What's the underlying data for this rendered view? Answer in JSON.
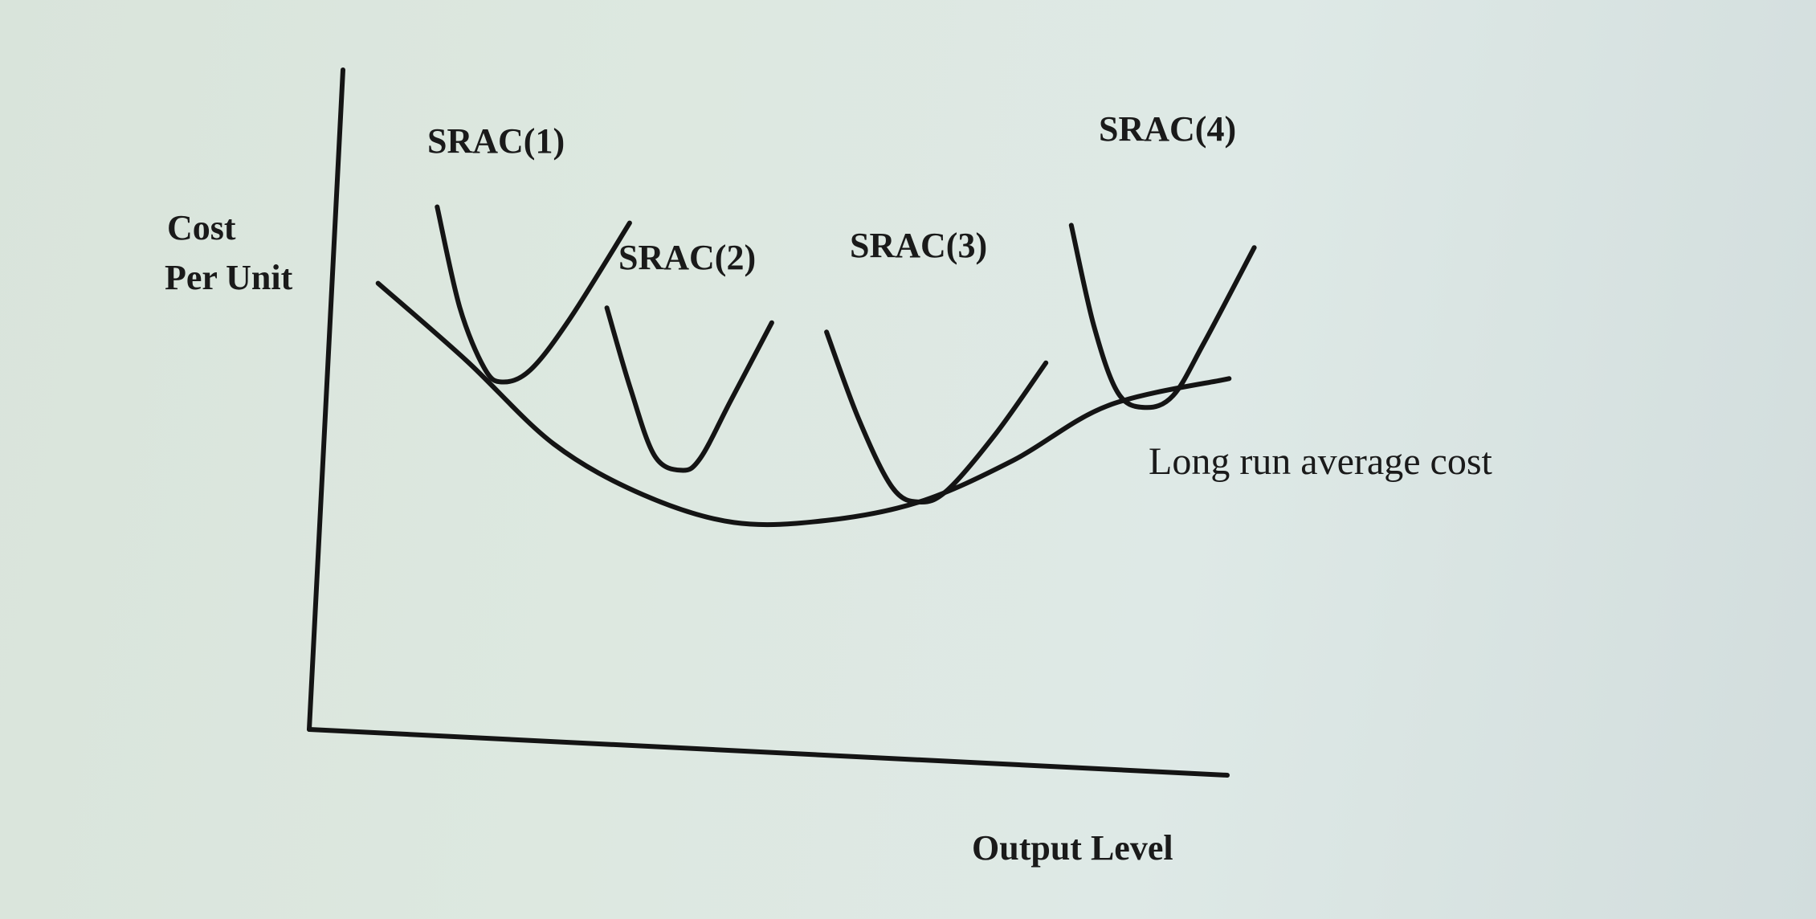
{
  "chart_data": {
    "type": "line",
    "title": "",
    "xlabel": "Output Level",
    "ylabel_lines": [
      "Cost",
      "Per Unit"
    ],
    "xlim": [
      0,
      10
    ],
    "ylim": [
      0,
      10
    ],
    "grid": false,
    "lrac": {
      "name": "Long run average cost",
      "x": [
        0.5,
        1.5,
        2.5,
        3.5,
        4.5,
        5.5,
        6.5,
        7.5,
        8.5,
        9.8
      ],
      "y": [
        6.8,
        5.7,
        4.5,
        3.8,
        3.45,
        3.55,
        3.9,
        4.6,
        5.5,
        6.0
      ]
    },
    "srac": [
      {
        "name": "SRAC(1)",
        "x": [
          1.1,
          1.4,
          1.7,
          1.9,
          2.2,
          2.6,
          3.2
        ],
        "y": [
          8.0,
          6.5,
          5.6,
          5.4,
          5.6,
          6.4,
          7.9
        ]
      },
      {
        "name": "SRAC(2)",
        "x": [
          3.0,
          3.3,
          3.6,
          3.9,
          4.1,
          4.4,
          4.8
        ],
        "y": [
          6.6,
          5.4,
          4.4,
          4.2,
          4.4,
          5.3,
          6.5
        ]
      },
      {
        "name": "SRAC(3)",
        "x": [
          5.4,
          5.8,
          6.2,
          6.5,
          6.8,
          7.3,
          7.8
        ],
        "y": [
          6.4,
          5.1,
          4.1,
          3.9,
          4.1,
          5.0,
          6.1
        ]
      },
      {
        "name": "SRAC(4)",
        "x": [
          8.0,
          8.3,
          8.6,
          8.9,
          9.2,
          9.5,
          10.0
        ],
        "y": [
          8.2,
          6.7,
          5.7,
          5.5,
          5.7,
          6.5,
          8.0
        ]
      }
    ]
  }
}
